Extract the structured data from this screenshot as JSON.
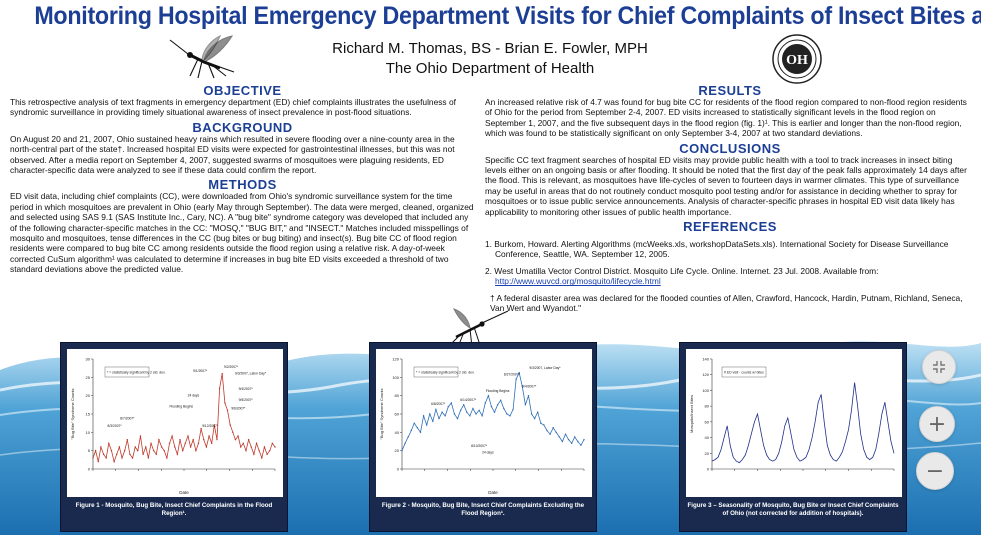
{
  "poster": {
    "title": "Monitoring Hospital Emergency Department Visits for Chief Complaints of Insect Bites after a Major Flood",
    "authors": "Richard M. Thomas, BS - Brian E. Fowler, MPH",
    "affiliation": "The Ohio Department of Health",
    "logo_text": "OH"
  },
  "sections": {
    "objective": {
      "heading": "OBJECTIVE",
      "text": "This retrospective analysis of text fragments in emergency department (ED) chief complaints illustrates the usefulness of syndromic surveillance in providing timely situational awareness of insect prevalence in post-flood situations."
    },
    "background": {
      "heading": "BACKGROUND",
      "text": "On August 20 and 21, 2007, Ohio sustained heavy rains which resulted in severe flooding over a nine-county area in the north-central part of the state†. Increased hospital ED visits were expected for gastrointestinal illnesses, but this was not observed.  After a media report on September 4, 2007, suggested swarms of mosquitoes were plaguing residents, ED character-specific data were analyzed to see if these data could confirm the report."
    },
    "methods": {
      "heading": "METHODS",
      "text": "ED visit data, including chief complaints (CC), were downloaded from Ohio's syndromic surveillance system for the time period in which mosquitoes are prevalent in Ohio (early May through September). The data were merged, cleaned, organized and selected using SAS 9.1 (SAS Institute Inc., Cary, NC). A \"bug bite\" syndrome category was developed that included any of the following character-specific matches in the CC: \"MOSQ,\" \"BUG BIT,\" and \"INSECT.\"  Matches included misspellings of mosquito and mosquitoes, tense differences in the CC (bug bites or bug biting) and insect(s).  Bug bite CC of flood region residents were compared to bug bite CC among residents outside the flood region using a relative risk. A day-of-week corrected CuSum algorithm¹ was calculated to determine if increases in bug bite ED visits exceeded a threshold of two standard deviations above the predicted value."
    },
    "results": {
      "heading": "RESULTS",
      "text": "An increased relative risk of 4.7 was found for bug bite CC for residents of the flood region compared to non-flood region residents of Ohio for the period from September 2-4, 2007.  ED visits increased to statistically significant levels in the flood region on September 1, 2007, and the five subsequent days in the flood region (fig. 1)¹.  This is earlier and longer than the non-flood region, which was found to be statistically significant on only September 3-4, 2007 at two standard deviations."
    },
    "conclusions": {
      "heading": "CONCLUSIONS",
      "text": "Specific CC text fragment searches of hospital ED visits may provide public health with a tool to track increases in insect biting levels either on an ongoing basis or after flooding.  It should be noted that the first day of the peak falls approximately 14 days after the flood. This is relevant, as mosquitoes have life-cycles of seven to fourteen days in warmer climates. This type of surveillance may be useful in areas that do not routinely conduct mosquito pool testing and/or for assistance in deciding whether to spray for mosquitoes or to issue public service announcements.  Analysis of character-specific phrases in hospital ED visit data likely has applicability to monitoring other issues of public health importance."
    },
    "references": {
      "heading": "REFERENCES",
      "ref1": "1. Burkom, Howard. Alerting Algorithms (mcWeeks.xls, workshopDataSets.xls).  International Society for Disease Surveillance Conference, Seattle, WA.  September 12, 2005.",
      "ref2_text": "2. West Umatilla Vector Control District.  Mosquito Life Cycle.  Online. Internet.  23 Jul. 2008. Available from: ",
      "ref2_link": "http://www.wuvcd.org/mosquito/lifecycle.html",
      "footnote": "† A federal disaster area was declared for the flooded counties of Allen, Crawford, Hancock, Hardin, Putnam, Richland, Seneca, Van Wert and Wyandot.\""
    }
  },
  "figures": [
    {
      "caption": "Figure 1 - Mosquito, Bug Bite, Insect Chief Complaints in the Flood Region¹.",
      "legend": "* = statistically significant by 2 std. dev.",
      "ylabel": "\"Bug Bite\" Syndrome Counts",
      "xlabel": "Date",
      "annotations": [
        "8/3/2007*",
        "8/7/2007*",
        "9/1/2007*",
        "9/2/2007*",
        "9/3/2007, Labor Day*",
        "9/4/2007*",
        "9/5/2007*",
        "9/6/2007*",
        "9/12/2007*",
        "24 days",
        "Flooding Begins"
      ]
    },
    {
      "caption": "Figure 2 - Mosquito, Bug Bite, Insect Chief Complaints Excluding the Flood Region¹.",
      "legend": "* = statistically significant by 2 std. dev.",
      "ylabel": "\"Bug Bite\" Syndrome Counts",
      "xlabel": "Date",
      "annotations": [
        "6/8/2007*",
        "6/14/2007*",
        "Flooding Begins",
        "8/27/2007*",
        "9/3/2007, Labor Day*",
        "9/4/2007*",
        "8/10/2007*",
        "24 days"
      ]
    },
    {
      "caption": "Figure 3 – Seasonality of Mosquito, Bug Bite or Insect Chief Complaints of Ohio (not corrected for addition of hospitals).",
      "legend": "# ED visit - counts w/ bites",
      "ylabel": "Mosquito/Insect Bites",
      "xlabel": "",
      "annotations": []
    }
  ],
  "chart_data": [
    {
      "type": "line",
      "title": "",
      "xlabel": "Date",
      "ylabel": "\"Bug Bite\" Syndrome Counts",
      "ylim": [
        0,
        30
      ],
      "yticks": [
        0,
        5,
        10,
        15,
        20,
        25,
        30
      ],
      "series": [
        {
          "color": "#c0392b",
          "values": [
            3,
            5,
            2,
            6,
            4,
            3,
            7,
            5,
            2,
            4,
            6,
            3,
            5,
            8,
            4,
            3,
            6,
            5,
            9,
            4,
            6,
            3,
            7,
            5,
            4,
            8,
            6,
            5,
            3,
            7,
            9,
            6,
            4,
            8,
            5,
            7,
            9,
            6,
            8,
            5,
            7,
            11,
            8,
            6,
            9,
            7,
            12,
            8,
            22,
            26,
            18,
            16,
            12,
            10,
            8,
            9,
            6,
            7,
            5,
            8,
            6,
            4,
            7,
            5,
            3,
            6,
            4,
            5,
            7,
            6
          ]
        }
      ]
    },
    {
      "type": "line",
      "title": "",
      "xlabel": "Date",
      "ylabel": "\"Bug Bite\" Syndrome Counts",
      "ylim": [
        0,
        120
      ],
      "yticks": [
        0,
        20,
        40,
        60,
        80,
        100,
        120
      ],
      "series": [
        {
          "color": "#2e6fb8",
          "values": [
            20,
            28,
            35,
            42,
            50,
            45,
            40,
            58,
            48,
            60,
            52,
            65,
            55,
            62,
            58,
            68,
            72,
            60,
            55,
            64,
            70,
            62,
            58,
            66,
            60,
            64,
            58,
            72,
            80,
            68,
            62,
            70,
            75,
            66,
            60,
            58,
            65,
            98,
            105,
            90,
            70,
            80,
            60,
            55,
            62,
            50,
            48,
            42,
            38,
            45,
            40,
            35,
            30,
            38,
            32,
            28,
            35,
            30,
            26,
            32
          ]
        }
      ]
    },
    {
      "type": "line",
      "title": "",
      "xlabel": "",
      "ylabel": "Mosquito/Insect Bites",
      "ylim": [
        0,
        140
      ],
      "yticks": [
        0,
        20,
        40,
        60,
        80,
        100,
        120,
        140
      ],
      "series": [
        {
          "color": "#1f2f8a",
          "values": [
            10,
            12,
            15,
            25,
            40,
            55,
            30,
            15,
            10,
            8,
            12,
            18,
            30,
            45,
            60,
            70,
            50,
            30,
            18,
            12,
            10,
            12,
            20,
            35,
            55,
            65,
            45,
            25,
            15,
            10,
            12,
            15,
            25,
            40,
            60,
            85,
            95,
            60,
            30,
            18,
            12,
            10,
            15,
            22,
            35,
            50,
            75,
            110,
            80,
            45,
            25,
            15,
            12,
            15,
            25,
            45,
            70,
            85,
            60,
            35,
            20
          ]
        }
      ]
    }
  ],
  "controls": {
    "collapse_icon": "collapse-icon",
    "zoom_in_label": "+",
    "zoom_out_label": "−"
  }
}
